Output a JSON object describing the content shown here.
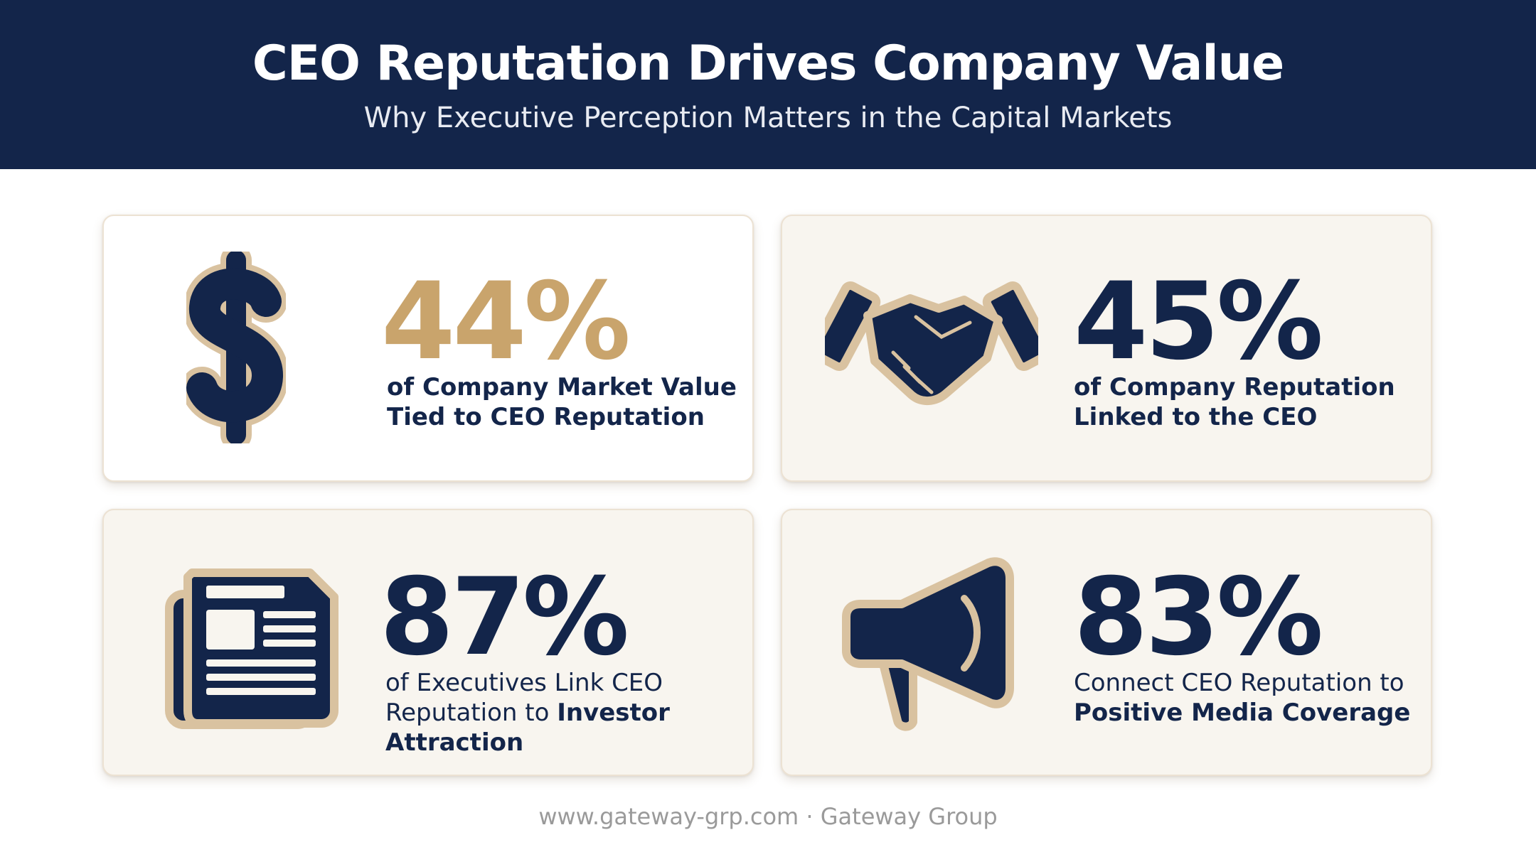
{
  "header": {
    "title": "CEO Reputation Drives Company Value",
    "subtitle": "Why Executive Perception Matters in the Capital Markets"
  },
  "colors": {
    "navy": "#13254a",
    "gold": "#c9a46c",
    "cream": "#f8f5ef",
    "icon_outline": "#d9c2a0"
  },
  "cards": [
    {
      "icon": "dollar-icon",
      "stat": "44%",
      "stat_color": "#c9a46c",
      "line1": "of Company Market Value",
      "line2": "Tied to CEO Reputation"
    },
    {
      "icon": "handshake-icon",
      "stat": "45%",
      "stat_color": "#13254a",
      "line1": "of Company Reputation",
      "line2": "Linked to the CEO"
    },
    {
      "icon": "newspaper-icon",
      "stat": "87%",
      "stat_color": "#13254a",
      "line1": "of Executives Link CEO",
      "line2_plain": "Reputation to ",
      "line2_bold": "Investor",
      "line3_bold": "Attraction"
    },
    {
      "icon": "megaphone-icon",
      "stat": "83%",
      "stat_color": "#13254a",
      "line1": "Connect CEO Reputation to",
      "line2_bold": "Positive Media Coverage"
    }
  ],
  "footer": {
    "text": "www.gateway-grp.com · Gateway Group"
  }
}
